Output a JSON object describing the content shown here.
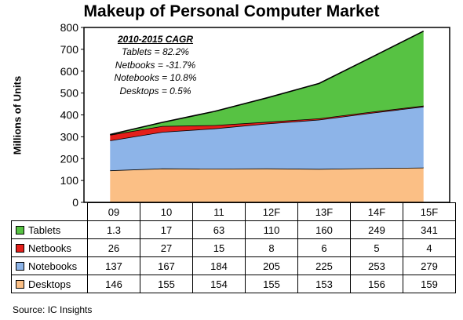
{
  "chart_data": {
    "type": "area",
    "title": "Makeup of Personal Computer Market",
    "ylabel": "Millions of Units",
    "xlabel": "",
    "ylim": [
      0,
      800
    ],
    "yticks": [
      0,
      100,
      200,
      300,
      400,
      500,
      600,
      700,
      800
    ],
    "categories": [
      "09",
      "10",
      "11",
      "12F",
      "13F",
      "14F",
      "15F"
    ],
    "stacked": true,
    "grid": false,
    "series": [
      {
        "name": "Desktops",
        "color": "#FBBF85",
        "values": [
          146,
          155,
          154,
          155,
          153,
          156,
          159
        ]
      },
      {
        "name": "Notebooks",
        "color": "#8DB4E8",
        "values": [
          137,
          167,
          184,
          205,
          225,
          253,
          279
        ]
      },
      {
        "name": "Netbooks",
        "color": "#E41F1A",
        "values": [
          26,
          27,
          15,
          8,
          6,
          5,
          4
        ]
      },
      {
        "name": "Tablets",
        "color": "#57C243",
        "values": [
          1.3,
          17,
          63,
          110,
          160,
          249,
          341
        ]
      }
    ],
    "table_order": [
      "Tablets",
      "Netbooks",
      "Notebooks",
      "Desktops"
    ],
    "annotation": {
      "title": "2010-2015 CAGR",
      "lines": [
        "Tablets = 82.2%",
        "Netbooks = -31.7%",
        "Notebooks = 10.8%",
        "Desktops = 0.5%"
      ]
    },
    "source": "Source: IC Insights"
  }
}
